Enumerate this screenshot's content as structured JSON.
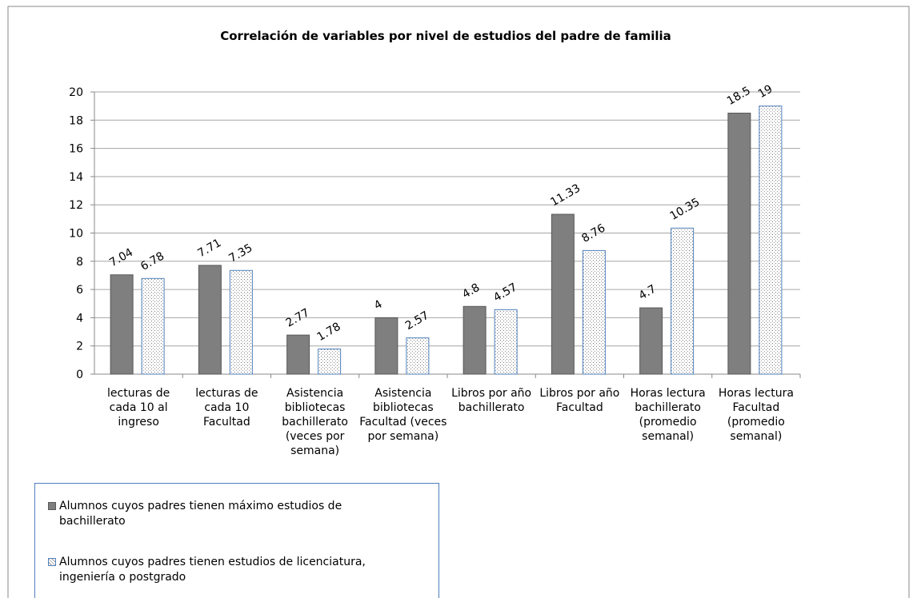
{
  "chart_data": {
    "type": "bar",
    "title": "Correlación de variables por nivel de estudios del padre de familia",
    "categories": [
      "lecturas de cada 10 al ingreso",
      "lecturas de cada 10 Facultad",
      "Asistencia bibliotecas bachillerato (veces por semana)",
      "Asistencia bibliotecas Facultad (veces por semana)",
      "Libros por año bachillerato",
      "Libros por año Facultad",
      "Horas lectura bachillerato (promedio semanal)",
      "Horas lectura Facultad (promedio semanal)"
    ],
    "series": [
      {
        "name": "Alumnos cuyos padres tienen máximo estudios de bachillerato",
        "color": "#7f7f7f",
        "values": [
          7.04,
          7.71,
          2.77,
          4,
          4.8,
          11.33,
          4.7,
          18.5
        ]
      },
      {
        "name": "Alumnos cuyos padres tienen estudios de licenciatura, ingeniería o postgrado",
        "color": "#ffffff",
        "values": [
          6.78,
          7.35,
          1.78,
          2.57,
          4.57,
          8.76,
          10.35,
          19
        ]
      }
    ],
    "ylim": [
      0,
      20
    ],
    "yticks": [
      0,
      2,
      4,
      6,
      8,
      10,
      12,
      14,
      16,
      18,
      20
    ],
    "grid": true,
    "legend": "bottom"
  }
}
